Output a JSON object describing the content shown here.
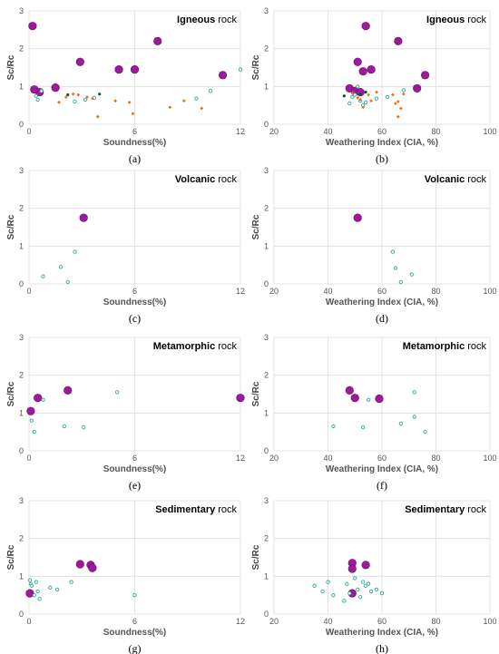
{
  "chart_data": [
    {
      "id": "a",
      "type": "scatter",
      "caption": "(a)",
      "title_strong": "Igneous",
      "title_soft": "rock",
      "xlabel": "Soundness(%)",
      "ylabel": "Sc/Rc",
      "xlim": [
        0,
        12
      ],
      "ylim": [
        0,
        3
      ],
      "xticks": [
        0,
        6,
        12
      ],
      "yticks": [
        0,
        1,
        2,
        3
      ],
      "grid": true,
      "series": [
        {
          "color": "#9c1a9c",
          "marker": "large-circle",
          "points": [
            [
              0.2,
              2.6
            ],
            [
              0.6,
              0.85
            ],
            [
              0.3,
              0.92
            ],
            [
              1.5,
              0.97
            ],
            [
              2.9,
              1.65
            ],
            [
              5.1,
              1.45
            ],
            [
              6.0,
              1.45
            ],
            [
              7.3,
              2.2
            ],
            [
              11.0,
              1.3
            ]
          ]
        },
        {
          "color": "#2aaa9e",
          "marker": "small-hollow-circle",
          "points": [
            [
              0.4,
              0.75
            ],
            [
              0.5,
              0.65
            ],
            [
              0.7,
              0.88
            ],
            [
              2.6,
              0.6
            ],
            [
              3.2,
              0.65
            ],
            [
              3.7,
              0.7
            ],
            [
              9.5,
              0.68
            ],
            [
              10.3,
              0.88
            ],
            [
              12.0,
              1.45
            ]
          ]
        },
        {
          "color": "#f07010",
          "marker": "small-diamond",
          "points": [
            [
              1.7,
              0.58
            ],
            [
              2.1,
              0.72
            ],
            [
              2.5,
              0.8
            ],
            [
              2.8,
              0.78
            ],
            [
              3.3,
              0.72
            ],
            [
              3.6,
              0.68
            ],
            [
              3.9,
              0.2
            ],
            [
              4.9,
              0.62
            ],
            [
              5.7,
              0.58
            ],
            [
              5.9,
              0.28
            ],
            [
              8.0,
              0.45
            ],
            [
              8.8,
              0.62
            ],
            [
              9.8,
              0.42
            ]
          ]
        },
        {
          "color": "#0a5a30",
          "marker": "small-dot",
          "points": [
            [
              2.2,
              0.78
            ],
            [
              4.0,
              0.8
            ]
          ]
        }
      ]
    },
    {
      "id": "b",
      "type": "scatter",
      "caption": "(b)",
      "title_strong": "Igneous",
      "title_soft": "rock",
      "xlabel": "Weathering Index  (CIA, %)",
      "ylabel": "Sc/Rc",
      "xlim": [
        20,
        100
      ],
      "ylim": [
        0,
        3
      ],
      "xticks": [
        20,
        40,
        60,
        80,
        100
      ],
      "yticks": [
        0,
        1,
        2,
        3
      ],
      "grid": true,
      "series": [
        {
          "color": "#9c1a9c",
          "marker": "large-circle",
          "points": [
            [
              48,
              0.95
            ],
            [
              50,
              0.88
            ],
            [
              51,
              1.65
            ],
            [
              52,
              0.85
            ],
            [
              53,
              1.4
            ],
            [
              54,
              2.6
            ],
            [
              56,
              1.45
            ],
            [
              66,
              2.2
            ],
            [
              73,
              0.95
            ],
            [
              76,
              1.3
            ]
          ]
        },
        {
          "color": "#2aaa9e",
          "marker": "small-hollow-circle",
          "points": [
            [
              48,
              0.55
            ],
            [
              49,
              0.72
            ],
            [
              50,
              0.78
            ],
            [
              51,
              1.0
            ],
            [
              52,
              0.62
            ],
            [
              53,
              0.5
            ],
            [
              54,
              0.58
            ],
            [
              58,
              0.68
            ],
            [
              62,
              0.72
            ],
            [
              68,
              0.9
            ]
          ]
        },
        {
          "color": "#f07010",
          "marker": "small-diamond",
          "points": [
            [
              49,
              0.82
            ],
            [
              51,
              0.7
            ],
            [
              52,
              0.65
            ],
            [
              53,
              0.45
            ],
            [
              55,
              0.78
            ],
            [
              56,
              0.62
            ],
            [
              58,
              0.85
            ],
            [
              64,
              0.78
            ],
            [
              65,
              0.55
            ],
            [
              66,
              0.6
            ],
            [
              66,
              0.2
            ],
            [
              67,
              0.42
            ],
            [
              68,
              0.8
            ]
          ]
        },
        {
          "color": "#0a5a30",
          "marker": "small-dot",
          "points": [
            [
              46,
              0.75
            ],
            [
              52,
              0.8
            ],
            [
              54,
              0.85
            ]
          ]
        }
      ]
    },
    {
      "id": "c",
      "type": "scatter",
      "caption": "(c)",
      "title_strong": "Volcanic",
      "title_soft": "rock",
      "xlabel": "Soundness(%)",
      "ylabel": "Sc/Rc",
      "xlim": [
        0,
        12
      ],
      "ylim": [
        0,
        3
      ],
      "xticks": [
        0,
        6,
        12
      ],
      "yticks": [
        0,
        1,
        2,
        3
      ],
      "grid": true,
      "series": [
        {
          "color": "#9c1a9c",
          "marker": "large-circle",
          "points": [
            [
              3.1,
              1.75
            ]
          ]
        },
        {
          "color": "#2aaa9e",
          "marker": "small-hollow-circle",
          "points": [
            [
              0.8,
              0.2
            ],
            [
              1.8,
              0.45
            ],
            [
              2.6,
              0.85
            ],
            [
              2.2,
              0.05
            ]
          ]
        }
      ]
    },
    {
      "id": "d",
      "type": "scatter",
      "caption": "(d)",
      "title_strong": "Volcanic",
      "title_soft": "rock",
      "xlabel": "Weathering Index  (CIA, %)",
      "ylabel": "Sc/Rc",
      "xlim": [
        20,
        100
      ],
      "ylim": [
        0,
        3
      ],
      "xticks": [
        20,
        40,
        60,
        80,
        100
      ],
      "yticks": [
        0,
        1,
        2,
        3
      ],
      "grid": true,
      "series": [
        {
          "color": "#9c1a9c",
          "marker": "large-circle",
          "points": [
            [
              51,
              1.75
            ]
          ]
        },
        {
          "color": "#2aaa9e",
          "marker": "small-hollow-circle",
          "points": [
            [
              64,
              0.85
            ],
            [
              65,
              0.42
            ],
            [
              67,
              0.05
            ],
            [
              71,
              0.25
            ]
          ]
        }
      ]
    },
    {
      "id": "e",
      "type": "scatter",
      "caption": "(e)",
      "title_strong": "Metamorphic",
      "title_soft": "rock",
      "xlabel": "Soundness(%)",
      "ylabel": "Sc/Rc",
      "xlim": [
        0,
        12
      ],
      "ylim": [
        0,
        3
      ],
      "xticks": [
        0,
        6,
        12
      ],
      "yticks": [
        0,
        1,
        2,
        3
      ],
      "grid": true,
      "series": [
        {
          "color": "#9c1a9c",
          "marker": "large-circle",
          "points": [
            [
              0.1,
              1.05
            ],
            [
              0.5,
              1.4
            ],
            [
              2.2,
              1.6
            ],
            [
              12.0,
              1.4
            ]
          ]
        },
        {
          "color": "#2aaa9e",
          "marker": "small-hollow-circle",
          "points": [
            [
              0.15,
              0.8
            ],
            [
              0.3,
              0.5
            ],
            [
              0.8,
              1.35
            ],
            [
              2.0,
              0.65
            ],
            [
              3.1,
              0.62
            ],
            [
              5.0,
              1.55
            ]
          ]
        }
      ]
    },
    {
      "id": "f",
      "type": "scatter",
      "caption": "(f)",
      "title_strong": "Metamorphic",
      "title_soft": "rock",
      "xlabel": "Weathering Index  (CIA, %)",
      "ylabel": "Sc/Rc",
      "xlim": [
        20,
        100
      ],
      "ylim": [
        0,
        3
      ],
      "xticks": [
        20,
        40,
        60,
        80,
        100
      ],
      "yticks": [
        0,
        1,
        2,
        3
      ],
      "grid": true,
      "series": [
        {
          "color": "#9c1a9c",
          "marker": "large-circle",
          "points": [
            [
              48,
              1.6
            ],
            [
              50,
              1.4
            ],
            [
              59,
              1.38
            ]
          ]
        },
        {
          "color": "#2aaa9e",
          "marker": "small-hollow-circle",
          "points": [
            [
              42,
              0.65
            ],
            [
              53,
              0.62
            ],
            [
              55,
              1.35
            ],
            [
              67,
              0.72
            ],
            [
              72,
              1.55
            ],
            [
              72,
              0.9
            ],
            [
              76,
              0.5
            ]
          ]
        }
      ]
    },
    {
      "id": "g",
      "type": "scatter",
      "caption": "(g)",
      "title_strong": "Sedimentary",
      "title_soft": "rock",
      "xlabel": "Soundness(%)",
      "ylabel": "Sc/Rc",
      "xlim": [
        0,
        12
      ],
      "ylim": [
        0,
        3
      ],
      "xticks": [
        0,
        6,
        12
      ],
      "yticks": [
        0,
        1,
        2,
        3
      ],
      "grid": true,
      "series": [
        {
          "color": "#9c1a9c",
          "marker": "large-circle",
          "points": [
            [
              0.05,
              0.55
            ],
            [
              2.9,
              1.32
            ],
            [
              3.5,
              1.3
            ],
            [
              3.6,
              1.22
            ]
          ]
        },
        {
          "color": "#2aaa9e",
          "marker": "small-hollow-circle",
          "points": [
            [
              0.05,
              0.9
            ],
            [
              0.1,
              0.8
            ],
            [
              0.15,
              0.75
            ],
            [
              0.3,
              0.5
            ],
            [
              0.4,
              0.85
            ],
            [
              0.5,
              0.6
            ],
            [
              0.6,
              0.4
            ],
            [
              1.2,
              0.7
            ],
            [
              1.6,
              0.65
            ],
            [
              2.4,
              0.85
            ],
            [
              6.0,
              0.5
            ]
          ]
        }
      ]
    },
    {
      "id": "h",
      "type": "scatter",
      "caption": "(h)",
      "title_strong": "Sedimentary",
      "title_soft": "rock",
      "xlabel": "Weathering Index  (CIA, %)",
      "ylabel": "Sc/Rc",
      "xlim": [
        20,
        100
      ],
      "ylim": [
        0,
        3
      ],
      "xticks": [
        20,
        40,
        60,
        80,
        100
      ],
      "yticks": [
        0,
        1,
        2,
        3
      ],
      "grid": true,
      "series": [
        {
          "color": "#9c1a9c",
          "marker": "large-circle",
          "points": [
            [
              49,
              1.35
            ],
            [
              49,
              1.2
            ],
            [
              49,
              0.55
            ],
            [
              54,
              1.3
            ]
          ]
        },
        {
          "color": "#2aaa9e",
          "marker": "small-hollow-circle",
          "points": [
            [
              35,
              0.75
            ],
            [
              38,
              0.6
            ],
            [
              40,
              0.85
            ],
            [
              42,
              0.5
            ],
            [
              46,
              0.35
            ],
            [
              47,
              0.8
            ],
            [
              48,
              0.55
            ],
            [
              50,
              0.95
            ],
            [
              51,
              0.65
            ],
            [
              52,
              0.45
            ],
            [
              53,
              0.85
            ],
            [
              54,
              0.75
            ],
            [
              55,
              0.8
            ],
            [
              56,
              0.6
            ],
            [
              58,
              0.65
            ],
            [
              60,
              0.55
            ]
          ]
        }
      ]
    }
  ]
}
